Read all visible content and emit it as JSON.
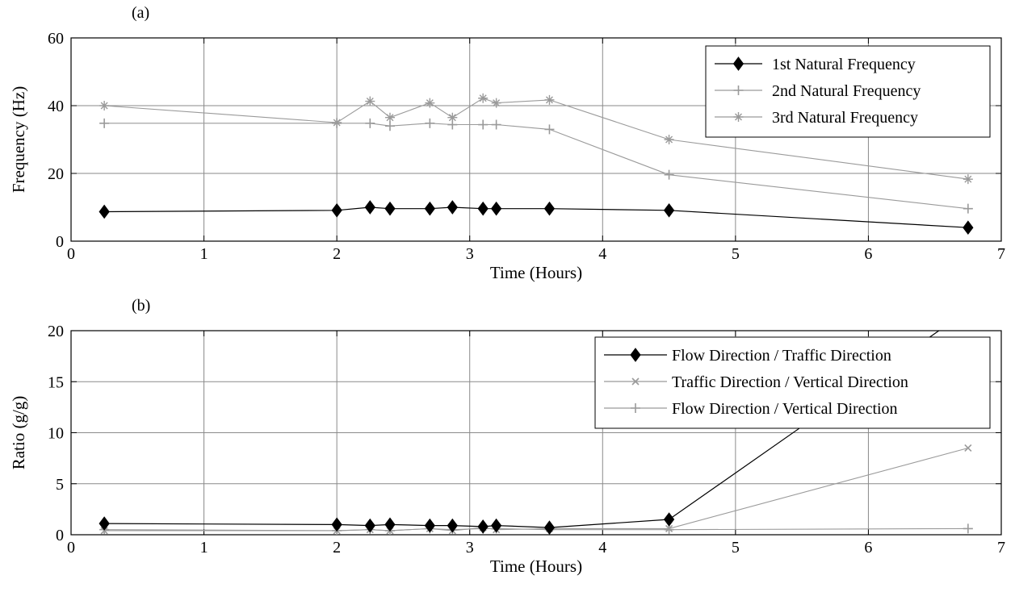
{
  "chart_data": [
    {
      "type": "line",
      "panel_label": "(a)",
      "xlabel": "Time (Hours)",
      "ylabel": "Frequency (Hz)",
      "xlim": [
        0,
        7
      ],
      "ylim": [
        0,
        60
      ],
      "xticks": [
        "0",
        "1",
        "2",
        "3",
        "4",
        "5",
        "6",
        "7"
      ],
      "yticks": [
        "0",
        "20",
        "40",
        "60"
      ],
      "grid": true,
      "legend_position": "top-right",
      "x": [
        0.25,
        2.0,
        2.25,
        2.4,
        2.7,
        2.87,
        3.1,
        3.2,
        3.6,
        4.5,
        6.75
      ],
      "series": [
        {
          "name": "1st Natural Frequency",
          "color": "#000000",
          "marker": "diamond",
          "values": [
            8.7,
            9.1,
            10.0,
            9.6,
            9.6,
            10.0,
            9.6,
            9.6,
            9.6,
            9.1,
            4.0
          ]
        },
        {
          "name": "2nd Natural Frequency",
          "color": "#9a9a9a",
          "marker": "plus",
          "values": [
            34.8,
            34.8,
            34.8,
            34.0,
            34.8,
            34.4,
            34.4,
            34.4,
            33.0,
            19.6,
            9.6
          ]
        },
        {
          "name": "3rd Natural Frequency",
          "color": "#9a9a9a",
          "marker": "star",
          "values": [
            40.0,
            35.0,
            41.3,
            36.5,
            40.8,
            36.5,
            42.2,
            40.8,
            41.7,
            30.0,
            18.3
          ]
        }
      ]
    },
    {
      "type": "line",
      "panel_label": "(b)",
      "xlabel": "Time (Hours)",
      "ylabel": "Ratio (g/g)",
      "xlim": [
        0,
        7
      ],
      "ylim": [
        0,
        20
      ],
      "xticks": [
        "0",
        "1",
        "2",
        "3",
        "4",
        "5",
        "6",
        "7"
      ],
      "yticks": [
        "0",
        "5",
        "10",
        "15",
        "20"
      ],
      "grid": true,
      "legend_position": "top-right",
      "x": [
        0.25,
        2.0,
        2.25,
        2.4,
        2.7,
        2.87,
        3.1,
        3.2,
        3.6,
        4.5,
        6.75
      ],
      "series": [
        {
          "name": "Flow Direction / Traffic Direction",
          "color": "#000000",
          "marker": "diamond",
          "values": [
            1.1,
            1.0,
            0.9,
            1.0,
            0.9,
            0.9,
            0.8,
            0.9,
            0.7,
            1.5,
            22.0
          ]
        },
        {
          "name": "Traffic Direction / Vertical Direction",
          "color": "#9a9a9a",
          "marker": "x",
          "values": [
            0.4,
            0.4,
            0.5,
            0.4,
            0.6,
            0.4,
            0.7,
            0.5,
            0.6,
            0.6,
            8.5
          ]
        },
        {
          "name": "Flow Direction / Vertical Direction",
          "color": "#9a9a9a",
          "marker": "plus",
          "values": [
            0.5,
            0.4,
            0.5,
            0.4,
            0.6,
            0.5,
            0.6,
            0.6,
            0.5,
            0.5,
            0.6
          ]
        }
      ]
    }
  ]
}
